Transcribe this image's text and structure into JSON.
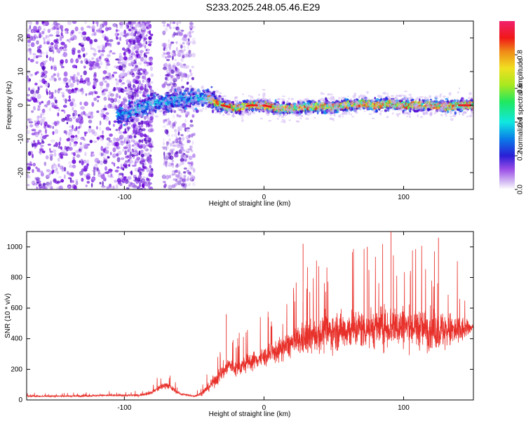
{
  "title": "S233.2025.248.05.46.E29",
  "chart_data": [
    {
      "type": "heatmap",
      "xlabel": "Height of straight line (km)",
      "ylabel": "Frequency (Hz)",
      "xlim": [
        -170,
        150
      ],
      "ylim": [
        -25,
        25
      ],
      "xticks": [
        -100,
        0,
        100
      ],
      "yticks": [
        -20,
        -10,
        0,
        10,
        20
      ],
      "colorbar": {
        "label": "Normalized spectral amplitude",
        "range": [
          0,
          1
        ],
        "ticks": [
          "0.0",
          "0.2",
          "0.4",
          "0.6",
          "0.8"
        ],
        "colormap": "rainbow (white-purple-blue-cyan-green-yellow-red-pink)"
      },
      "ridge": {
        "x": [
          -100,
          -90,
          -80,
          -70,
          -60,
          -50,
          -40,
          -30,
          -20,
          -10,
          0,
          10,
          20,
          30,
          40,
          50,
          60,
          70,
          80,
          90,
          100,
          110,
          120,
          130,
          140,
          150
        ],
        "y": [
          -3,
          -1,
          0.5,
          1,
          2,
          2,
          2,
          0,
          -1,
          0,
          0,
          -1,
          -1,
          -0.5,
          -0.5,
          -0.5,
          0,
          0.5,
          0,
          0.5,
          0,
          0,
          0,
          -0.5,
          0,
          0
        ]
      },
      "grid": false
    },
    {
      "type": "line",
      "xlabel": "Height of straight line (km)",
      "ylabel": "SNR (10 * v/v)",
      "xlim": [
        -170,
        150
      ],
      "ylim": [
        0,
        1100
      ],
      "xticks": [
        -100,
        0,
        100
      ],
      "yticks": [
        0,
        200,
        400,
        600,
        800,
        1000
      ],
      "color": "#e8302a",
      "envelope": {
        "x": [
          -170,
          -140,
          -110,
          -90,
          -80,
          -75,
          -70,
          -65,
          -60,
          -50,
          -45,
          -40,
          -35,
          -30,
          -25,
          -20,
          -10,
          0,
          10,
          20,
          30,
          40,
          50,
          60,
          70,
          80,
          90,
          100,
          110,
          120,
          130,
          140,
          150
        ],
        "mean": [
          25,
          25,
          30,
          30,
          50,
          80,
          100,
          70,
          40,
          25,
          40,
          80,
          130,
          180,
          230,
          200,
          250,
          280,
          320,
          370,
          400,
          430,
          450,
          460,
          470,
          470,
          480,
          480,
          470,
          460,
          450,
          450,
          480
        ],
        "spread": [
          10,
          10,
          12,
          15,
          25,
          40,
          40,
          30,
          15,
          10,
          25,
          50,
          80,
          110,
          110,
          100,
          110,
          120,
          140,
          170,
          200,
          220,
          230,
          240,
          250,
          250,
          260,
          260,
          250,
          250,
          240,
          200,
          30
        ]
      },
      "peaks": [
        {
          "x": -27,
          "y": 560
        },
        {
          "x": 28,
          "y": 1020
        },
        {
          "x": 74,
          "y": 1000
        },
        {
          "x": 91,
          "y": 1100
        },
        {
          "x": 125,
          "y": 1060
        }
      ]
    }
  ]
}
